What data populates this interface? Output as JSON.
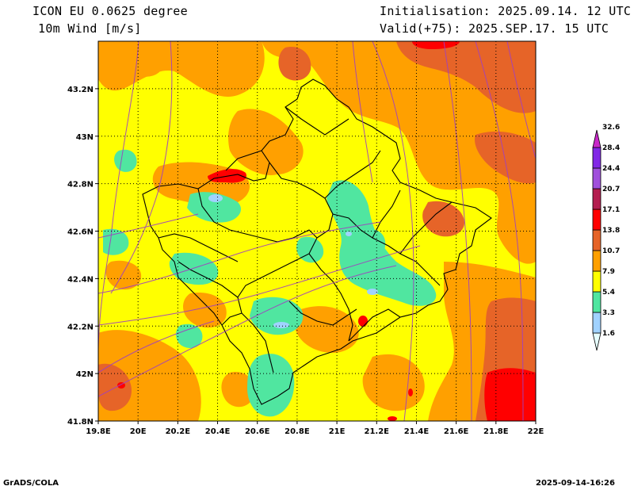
{
  "header": {
    "model": "ICON EU 0.0625 degree",
    "variable": "10m Wind [m/s]",
    "init": "Initialisation: 2025.09.14. 12 UTC",
    "valid": "Valid(+75): 2025.SEP.17. 15 UTC"
  },
  "axes": {
    "lon_labels": [
      "19.8E",
      "20E",
      "20.2E",
      "20.4E",
      "20.6E",
      "20.8E",
      "21E",
      "21.2E",
      "21.4E",
      "21.6E",
      "21.8E",
      "22E"
    ],
    "lat_labels": [
      "41.8N",
      "42N",
      "42.2N",
      "42.4N",
      "42.6N",
      "42.8N",
      "43N",
      "43.2N"
    ],
    "lon_range": [
      19.8,
      22.0
    ],
    "lat_range": [
      41.8,
      43.4
    ],
    "grid": true
  },
  "colorbar": {
    "labels": [
      "1.6",
      "3.3",
      "5.4",
      "7.9",
      "10.7",
      "13.8",
      "17.1",
      "20.7",
      "24.4",
      "28.4",
      "32.6"
    ],
    "colors": [
      "#e6ffff",
      "#a0d2ff",
      "#50e6a0",
      "#ffff00",
      "#ffa000",
      "#e66428",
      "#ff0000",
      "#b41e50",
      "#a050dc",
      "#8228e6",
      "#c828c8"
    ]
  },
  "footer": {
    "left": "GrADS/COLA",
    "right": "2025-09-14-16:26"
  }
}
